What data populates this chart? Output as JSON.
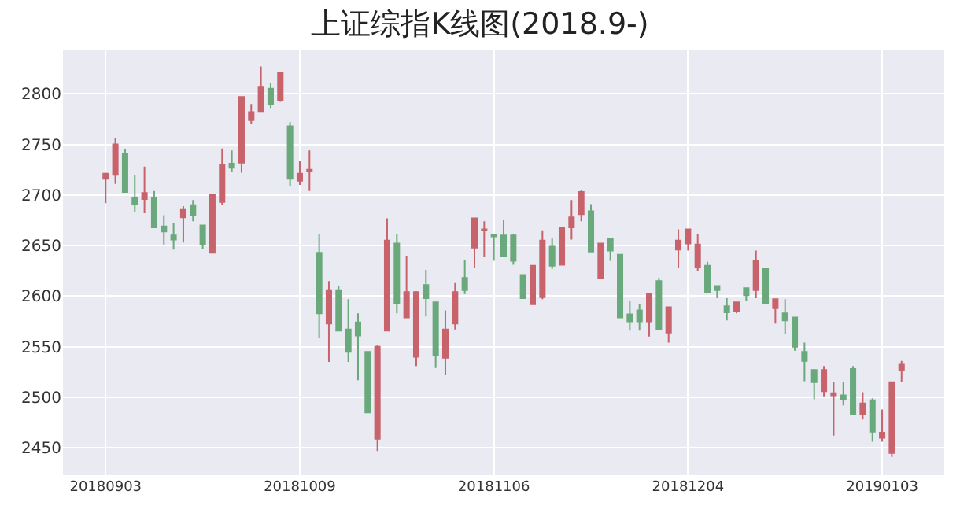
{
  "chart_data": {
    "type": "candlestick",
    "title": "上证综指K线图(2018.9-)",
    "categories": [
      "20180903",
      null,
      null,
      null,
      null,
      null,
      null,
      null,
      null,
      null,
      null,
      null,
      null,
      null,
      null,
      null,
      null,
      null,
      null,
      null,
      "20181009",
      null,
      null,
      null,
      null,
      null,
      null,
      null,
      null,
      null,
      null,
      null,
      null,
      null,
      null,
      null,
      null,
      null,
      null,
      null,
      "20181106",
      null,
      null,
      null,
      null,
      null,
      null,
      null,
      null,
      null,
      null,
      null,
      null,
      null,
      null,
      null,
      null,
      null,
      null,
      null,
      "20181204",
      null,
      null,
      null,
      null,
      null,
      null,
      null,
      null,
      null,
      null,
      null,
      null,
      null,
      null,
      null,
      null,
      null,
      null,
      null,
      "20190103",
      null,
      null
    ],
    "ohlc": [
      [
        2716,
        2722,
        2692,
        2721
      ],
      [
        2720,
        2756,
        2711,
        2750
      ],
      [
        2741,
        2745,
        2703,
        2703
      ],
      [
        2697,
        2720,
        2683,
        2691
      ],
      [
        2696,
        2728,
        2682,
        2702
      ],
      [
        2697,
        2704,
        2668,
        2668
      ],
      [
        2669,
        2680,
        2651,
        2664
      ],
      [
        2660,
        2672,
        2646,
        2656
      ],
      [
        2678,
        2689,
        2653,
        2686
      ],
      [
        2690,
        2695,
        2674,
        2680
      ],
      [
        2670,
        2670,
        2647,
        2651
      ],
      [
        2643,
        2700,
        2643,
        2700
      ],
      [
        2693,
        2746,
        2690,
        2730
      ],
      [
        2731,
        2744,
        2723,
        2727
      ],
      [
        2732,
        2797,
        2722,
        2797
      ],
      [
        2774,
        2790,
        2770,
        2782
      ],
      [
        2783,
        2827,
        2783,
        2807
      ],
      [
        2805,
        2811,
        2786,
        2790
      ],
      [
        2794,
        2822,
        2792,
        2821
      ],
      [
        2768,
        2772,
        2709,
        2716
      ],
      [
        2714,
        2734,
        2710,
        2721
      ],
      [
        2724,
        2744,
        2704,
        2725
      ],
      [
        2643,
        2661,
        2559,
        2583
      ],
      [
        2573,
        2615,
        2535,
        2606
      ],
      [
        2606,
        2610,
        2566,
        2566
      ],
      [
        2567,
        2597,
        2535,
        2545
      ],
      [
        2574,
        2583,
        2517,
        2561
      ],
      [
        2545,
        2545,
        2485,
        2485
      ],
      [
        2459,
        2552,
        2447,
        2550
      ],
      [
        2566,
        2677,
        2566,
        2655
      ],
      [
        2652,
        2661,
        2583,
        2593
      ],
      [
        2579,
        2640,
        2579,
        2604
      ],
      [
        2540,
        2605,
        2531,
        2604
      ],
      [
        2611,
        2626,
        2580,
        2598
      ],
      [
        2594,
        2594,
        2529,
        2542
      ],
      [
        2539,
        2586,
        2522,
        2567
      ],
      [
        2573,
        2613,
        2567,
        2604
      ],
      [
        2618,
        2636,
        2602,
        2606
      ],
      [
        2648,
        2677,
        2628,
        2677
      ],
      [
        2665,
        2674,
        2639,
        2666
      ],
      [
        2661,
        2661,
        2635,
        2659
      ],
      [
        2660,
        2675,
        2640,
        2640
      ],
      [
        2660,
        2661,
        2631,
        2635
      ],
      [
        2621,
        2621,
        2598,
        2598
      ],
      [
        2592,
        2630,
        2592,
        2630
      ],
      [
        2599,
        2665,
        2597,
        2655
      ],
      [
        2649,
        2657,
        2627,
        2630
      ],
      [
        2631,
        2668,
        2631,
        2668
      ],
      [
        2668,
        2695,
        2656,
        2678
      ],
      [
        2681,
        2705,
        2674,
        2703
      ],
      [
        2684,
        2691,
        2644,
        2644
      ],
      [
        2618,
        2652,
        2618,
        2652
      ],
      [
        2657,
        2657,
        2635,
        2645
      ],
      [
        2641,
        2641,
        2579,
        2579
      ],
      [
        2582,
        2595,
        2566,
        2575
      ],
      [
        2586,
        2592,
        2566,
        2575
      ],
      [
        2575,
        2602,
        2560,
        2602
      ],
      [
        2615,
        2618,
        2567,
        2567
      ],
      [
        2564,
        2589,
        2554,
        2589
      ],
      [
        2646,
        2666,
        2628,
        2655
      ],
      [
        2652,
        2666,
        2645,
        2666
      ],
      [
        2629,
        2661,
        2625,
        2651
      ],
      [
        2630,
        2634,
        2604,
        2604
      ],
      [
        2610,
        2610,
        2598,
        2606
      ],
      [
        2590,
        2598,
        2576,
        2584
      ],
      [
        2585,
        2594,
        2583,
        2594
      ],
      [
        2608,
        2608,
        2595,
        2601
      ],
      [
        2606,
        2645,
        2598,
        2635
      ],
      [
        2627,
        2627,
        2593,
        2593
      ],
      [
        2588,
        2597,
        2573,
        2597
      ],
      [
        2583,
        2597,
        2563,
        2576
      ],
      [
        2579,
        2579,
        2546,
        2550
      ],
      [
        2545,
        2554,
        2516,
        2536
      ],
      [
        2527,
        2527,
        2498,
        2515
      ],
      [
        2506,
        2531,
        2501,
        2527
      ],
      [
        2502,
        2515,
        2462,
        2504
      ],
      [
        2502,
        2515,
        2492,
        2498
      ],
      [
        2528,
        2531,
        2483,
        2483
      ],
      [
        2483,
        2505,
        2478,
        2494
      ],
      [
        2497,
        2499,
        2456,
        2466
      ],
      [
        2460,
        2488,
        2456,
        2465
      ],
      [
        2445,
        2515,
        2441,
        2515
      ],
      [
        2527,
        2536,
        2515,
        2533
      ]
    ],
    "colors": [
      "#c8636c",
      "#c8636c",
      "#6aa97b",
      "#6aa97b",
      "#c8636c",
      "#6aa97b",
      "#6aa97b",
      "#6aa97b",
      "#c8636c",
      "#6aa97b",
      "#6aa97b",
      "#c8636c",
      "#c8636c",
      "#6aa97b",
      "#c8636c",
      "#c8636c",
      "#c8636c",
      "#6aa97b",
      "#c8636c",
      "#6aa97b",
      "#c8636c",
      "#c8636c",
      "#6aa97b",
      "#c8636c",
      "#6aa97b",
      "#6aa97b",
      "#6aa97b",
      "#6aa97b",
      "#c8636c",
      "#c8636c",
      "#6aa97b",
      "#c8636c",
      "#c8636c",
      "#6aa97b",
      "#6aa97b",
      "#c8636c",
      "#c8636c",
      "#6aa97b",
      "#c8636c",
      "#c8636c",
      "#6aa97b",
      "#6aa97b",
      "#6aa97b",
      "#6aa97b",
      "#c8636c",
      "#c8636c",
      "#6aa97b",
      "#c8636c",
      "#c8636c",
      "#c8636c",
      "#6aa97b",
      "#c8636c",
      "#6aa97b",
      "#6aa97b",
      "#6aa97b",
      "#6aa97b",
      "#c8636c",
      "#6aa97b",
      "#c8636c",
      "#c8636c",
      "#c8636c",
      "#c8636c",
      "#6aa97b",
      "#6aa97b",
      "#6aa97b",
      "#c8636c",
      "#6aa97b",
      "#c8636c",
      "#6aa97b",
      "#c8636c",
      "#6aa97b",
      "#6aa97b",
      "#6aa97b",
      "#6aa97b",
      "#c8636c",
      "#c8636c",
      "#6aa97b",
      "#6aa97b",
      "#c8636c",
      "#6aa97b",
      "#c8636c",
      "#c8636c",
      "#c8636c"
    ],
    "ylim": [
      2423,
      2843
    ],
    "yticks": [
      2450,
      2500,
      2550,
      2600,
      2650,
      2700,
      2750,
      2800
    ],
    "grid": true
  }
}
